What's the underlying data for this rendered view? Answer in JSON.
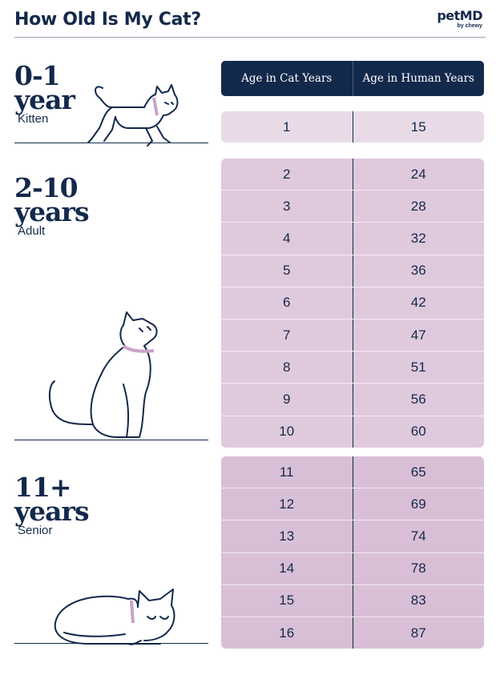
{
  "header": {
    "title": "How Old Is My Cat?",
    "brand": "petMD",
    "brand_sub": "by chewy"
  },
  "table": {
    "columns": [
      "Age in Cat Years",
      "Age in Human Years"
    ]
  },
  "groups": [
    {
      "range": "0-1",
      "unit": "year",
      "stage": "Kitten",
      "rows": [
        {
          "cat": "1",
          "human": "15"
        }
      ]
    },
    {
      "range": "2-10",
      "unit": "years",
      "stage": "Adult",
      "rows": [
        {
          "cat": "2",
          "human": "24"
        },
        {
          "cat": "3",
          "human": "28"
        },
        {
          "cat": "4",
          "human": "32"
        },
        {
          "cat": "5",
          "human": "36"
        },
        {
          "cat": "6",
          "human": "42"
        },
        {
          "cat": "7",
          "human": "47"
        },
        {
          "cat": "8",
          "human": "51"
        },
        {
          "cat": "9",
          "human": "56"
        },
        {
          "cat": "10",
          "human": "60"
        }
      ]
    },
    {
      "range": "11+",
      "unit": "years",
      "stage": "Senior",
      "rows": [
        {
          "cat": "11",
          "human": "65"
        },
        {
          "cat": "12",
          "human": "69"
        },
        {
          "cat": "13",
          "human": "74"
        },
        {
          "cat": "14",
          "human": "78"
        },
        {
          "cat": "15",
          "human": "83"
        },
        {
          "cat": "16",
          "human": "87"
        }
      ]
    }
  ],
  "colors": {
    "navy": "#13294b",
    "kitten_row": "#e8dbe7",
    "adult_row": "#dfc9dd",
    "senior_row": "#d8bfd6",
    "collar": "#c9a3c8"
  },
  "icons": [
    "walking-kitten-icon",
    "sitting-cat-icon",
    "sleeping-cat-icon"
  ]
}
